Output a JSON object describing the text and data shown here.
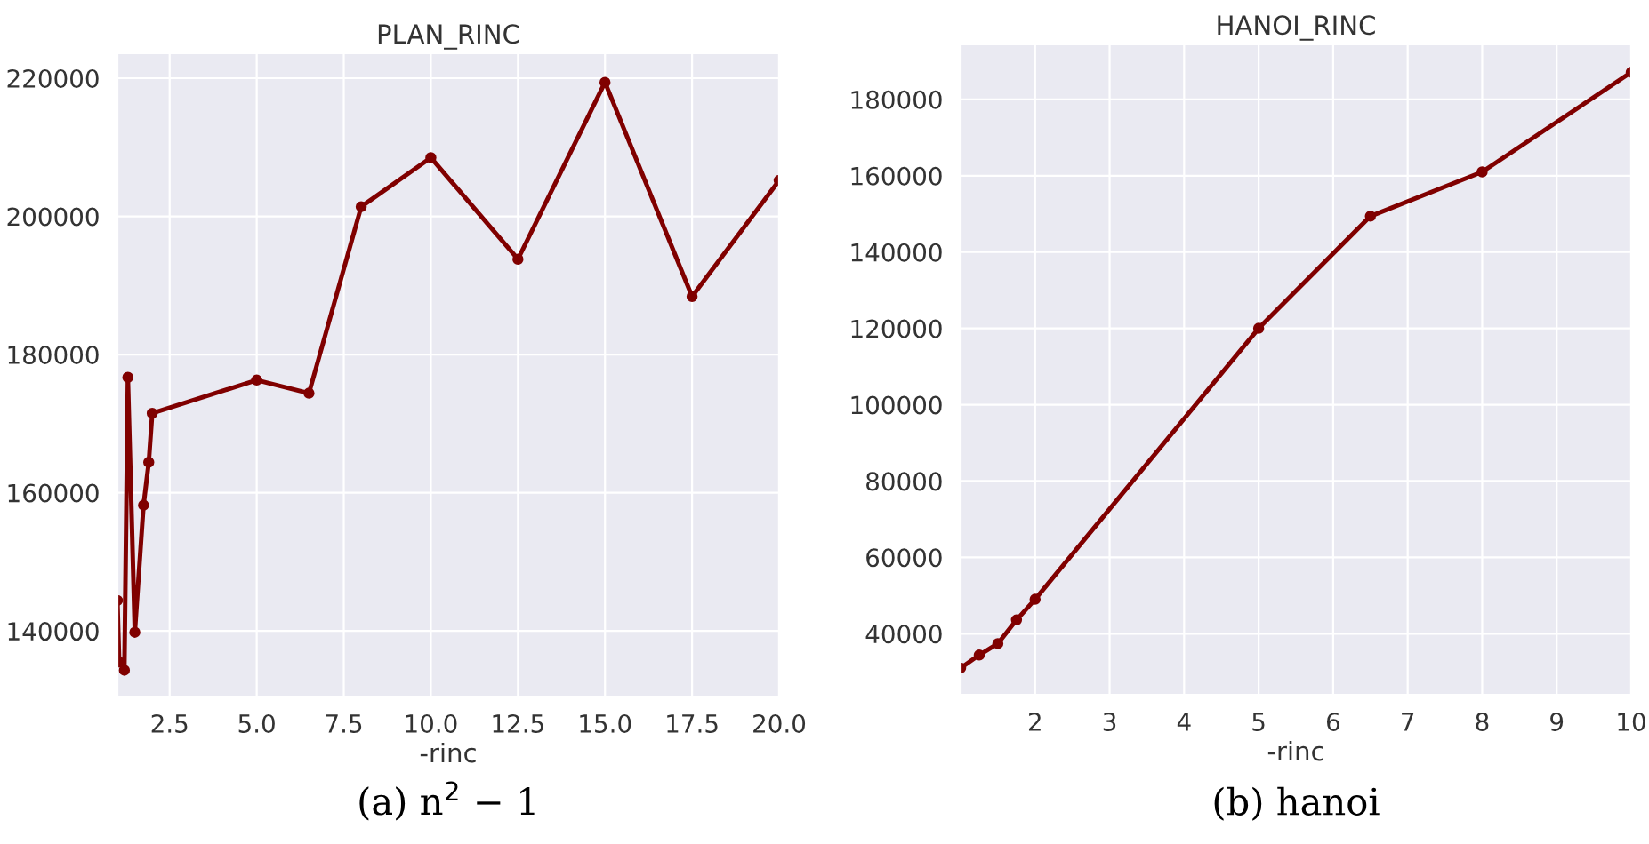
{
  "chart_data": [
    {
      "type": "line",
      "title": "PLAN_RINC",
      "xlabel": "-rinc",
      "xlim": [
        1.0,
        20.0
      ],
      "xticks": [
        {
          "value": 2.5,
          "label": "2.5"
        },
        {
          "value": 5.0,
          "label": "5.0"
        },
        {
          "value": 7.5,
          "label": "7.5"
        },
        {
          "value": 10.0,
          "label": "10.0"
        },
        {
          "value": 12.5,
          "label": "12.5"
        },
        {
          "value": 15.0,
          "label": "15.0"
        },
        {
          "value": 17.5,
          "label": "17.5"
        },
        {
          "value": 20.0,
          "label": "20.0"
        }
      ],
      "ylim": [
        130500,
        223600
      ],
      "yticks": [
        140000,
        160000,
        180000,
        200000,
        220000
      ],
      "grid": true,
      "marker": "circle",
      "line_style": "solid",
      "annotations": [
        "(a) n$^{2}$ − 1"
      ],
      "series": [
        {
          "color": "#800000",
          "x": [
            1.0,
            1.05,
            1.2,
            1.3,
            1.5,
            1.75,
            1.9,
            2.0,
            5.0,
            6.5,
            8.0,
            10.0,
            12.5,
            15.0,
            17.5,
            20.0
          ],
          "values": [
            144400,
            135500,
            134300,
            176700,
            139800,
            158200,
            164400,
            171500,
            176300,
            174400,
            201400,
            208500,
            193800,
            219400,
            188400,
            205200
          ]
        }
      ]
    },
    {
      "type": "line",
      "title": "HANOI_RINC",
      "xlabel": "-rinc",
      "xlim": [
        1.0,
        10.0
      ],
      "xticks": [
        2,
        3,
        4,
        5,
        6,
        7,
        8,
        9,
        10
      ],
      "ylim": [
        24000,
        194400
      ],
      "yticks": [
        40000,
        60000,
        80000,
        100000,
        120000,
        140000,
        160000,
        180000
      ],
      "grid": true,
      "marker": "circle",
      "line_style": "solid",
      "annotations": [
        "(b) hanoi"
      ],
      "series": [
        {
          "color": "#800000",
          "x": [
            1.0,
            1.25,
            1.5,
            1.75,
            2.0,
            5.0,
            6.5,
            8.0,
            10.0
          ],
          "values": [
            31000,
            34400,
            37400,
            43600,
            49000,
            120000,
            149400,
            161000,
            187100
          ]
        }
      ]
    }
  ]
}
